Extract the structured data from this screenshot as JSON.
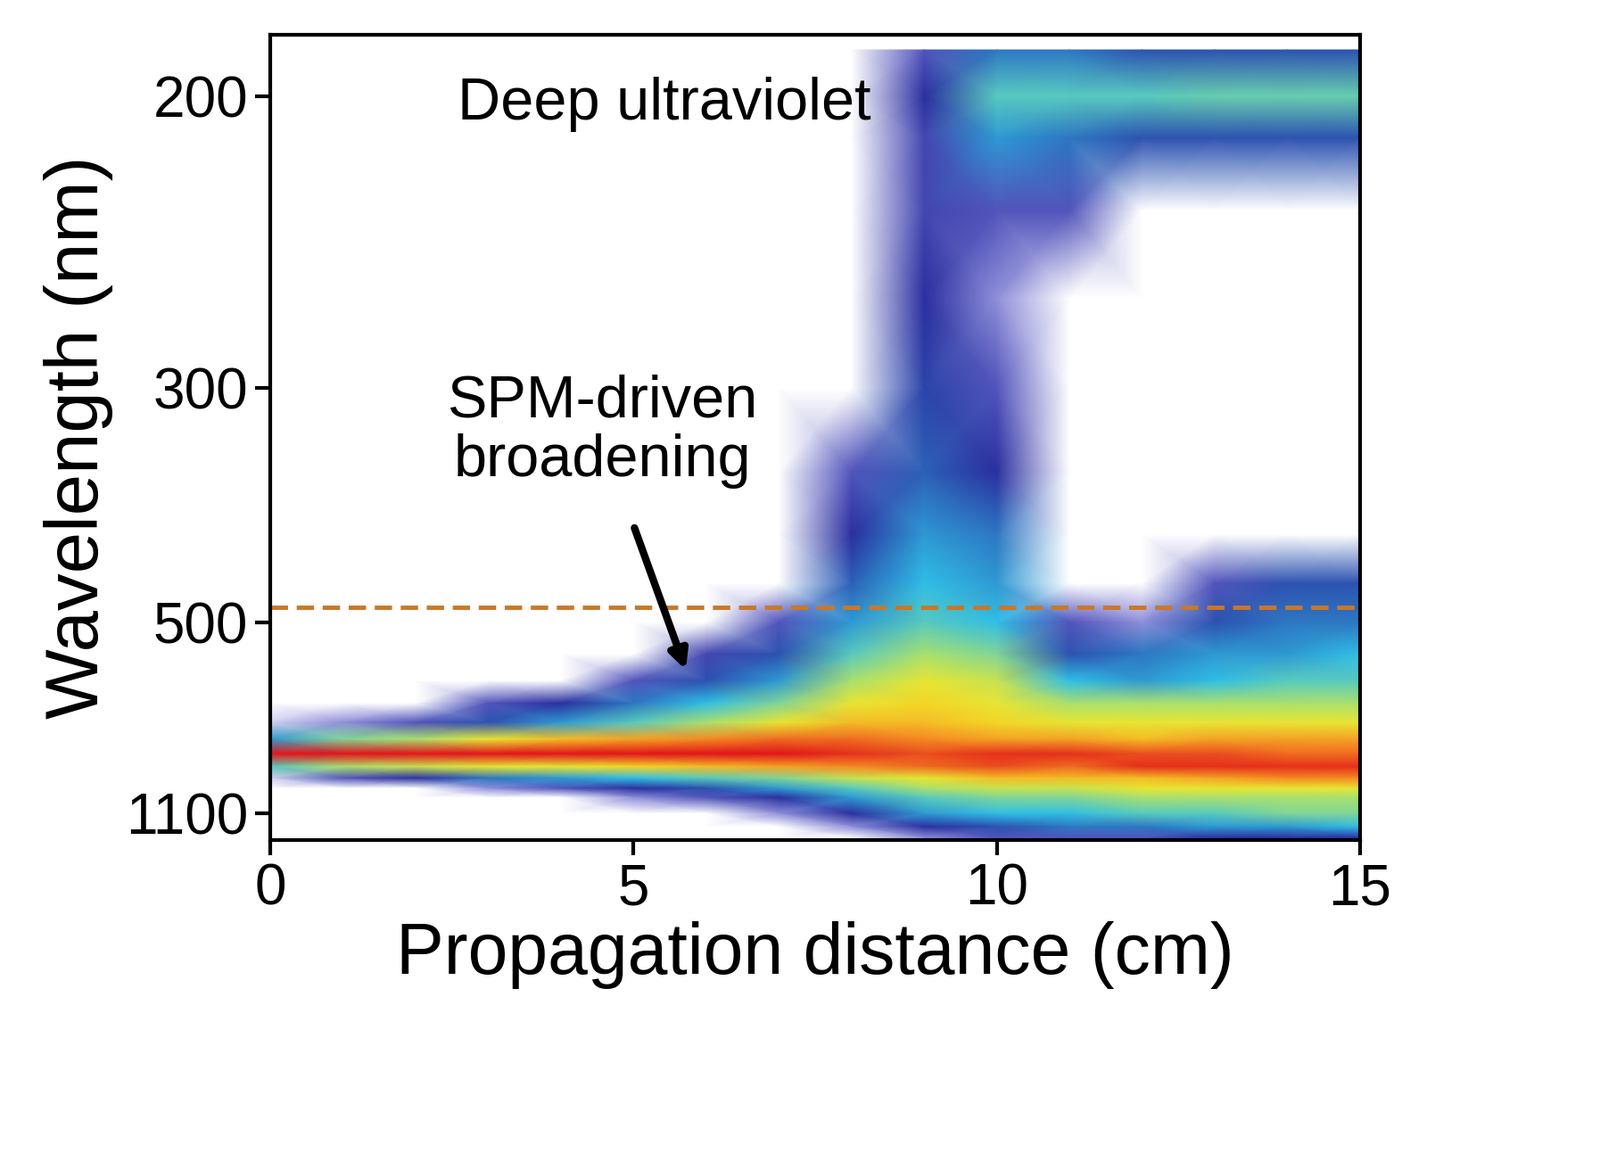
{
  "chart_data": {
    "type": "heatmap",
    "x_label": "Propagation distance (cm)",
    "y_label": "Wavelength (nm)",
    "x": [
      0,
      1,
      2,
      3,
      4,
      5,
      6,
      7,
      8,
      9,
      10,
      11,
      12,
      13,
      14,
      15
    ],
    "wavelengths": [
      190,
      200,
      210,
      230,
      260,
      300,
      350,
      400,
      450,
      500,
      550,
      600,
      650,
      700,
      750,
      800,
      850,
      900,
      950,
      1000,
      1100,
      1200,
      1300
    ],
    "cells": [
      [
        0,
        0,
        0,
        0,
        0,
        0,
        0,
        0,
        0,
        0,
        0,
        0,
        0,
        0.02,
        0.3,
        1,
        0.4,
        0.02,
        0,
        0,
        0,
        0,
        0
      ],
      [
        0,
        0,
        0,
        0,
        0,
        0,
        0,
        0,
        0,
        0,
        0,
        0,
        0,
        0.05,
        0.45,
        1,
        0.5,
        0.1,
        0,
        0,
        0,
        0,
        0
      ],
      [
        0,
        0,
        0,
        0,
        0,
        0,
        0,
        0,
        0,
        0,
        0,
        0,
        0,
        0.1,
        0.5,
        1,
        0.55,
        0.15,
        0,
        0,
        0,
        0,
        0
      ],
      [
        0,
        0,
        0,
        0,
        0,
        0,
        0,
        0,
        0,
        0,
        0,
        0,
        0.1,
        0.2,
        0.6,
        1,
        0.6,
        0.25,
        0.05,
        0,
        0,
        0,
        0
      ],
      [
        0,
        0,
        0,
        0,
        0,
        0,
        0,
        0,
        0,
        0,
        0,
        0,
        0.15,
        0.3,
        0.7,
        1,
        0.6,
        0.3,
        0.1,
        0,
        0,
        0,
        0
      ],
      [
        0,
        0,
        0,
        0,
        0,
        0,
        0,
        0,
        0,
        0,
        0,
        0.1,
        0.25,
        0.4,
        0.75,
        1,
        0.65,
        0.35,
        0.15,
        0.05,
        0,
        0,
        0
      ],
      [
        0,
        0,
        0,
        0,
        0,
        0,
        0,
        0,
        0,
        0,
        0.12,
        0.2,
        0.35,
        0.5,
        0.8,
        1,
        0.7,
        0.4,
        0.2,
        0.1,
        0,
        0,
        0
      ],
      [
        0,
        0,
        0,
        0,
        0,
        0,
        0,
        0,
        0,
        0.1,
        0.2,
        0.3,
        0.45,
        0.6,
        0.85,
        1,
        0.75,
        0.45,
        0.3,
        0.15,
        0.05,
        0,
        0
      ],
      [
        0,
        0,
        0,
        0,
        0,
        0,
        0.1,
        0.15,
        0.22,
        0.3,
        0.4,
        0.5,
        0.6,
        0.7,
        0.85,
        0.95,
        0.8,
        0.55,
        0.4,
        0.3,
        0.15,
        0.05,
        0
      ],
      [
        0.1,
        0.15,
        0.12,
        0.12,
        0.15,
        0.18,
        0.22,
        0.3,
        0.35,
        0.4,
        0.5,
        0.6,
        0.65,
        0.7,
        0.8,
        0.9,
        0.85,
        0.6,
        0.5,
        0.4,
        0.3,
        0.15,
        0.05
      ],
      [
        0.25,
        0.4,
        0.3,
        0.1,
        0.05,
        0.1,
        0.15,
        0.25,
        0.3,
        0.35,
        0.45,
        0.55,
        0.6,
        0.65,
        0.75,
        0.95,
        0.9,
        0.7,
        0.55,
        0.45,
        0.35,
        0.2,
        0.1
      ],
      [
        0.25,
        0.4,
        0.25,
        0.1,
        0,
        0,
        0,
        0,
        0,
        0.1,
        0.2,
        0.35,
        0.5,
        0.6,
        0.75,
        0.95,
        0.85,
        0.7,
        0.55,
        0.45,
        0.35,
        0.25,
        0.1
      ],
      [
        0.2,
        0.4,
        0.2,
        0,
        0,
        0,
        0,
        0,
        0,
        0.05,
        0.25,
        0.3,
        0.5,
        0.6,
        0.7,
        0.9,
        0.95,
        0.7,
        0.6,
        0.5,
        0.4,
        0.25,
        0.1
      ],
      [
        0.2,
        0.42,
        0.2,
        0,
        0,
        0,
        0,
        0,
        0.1,
        0.2,
        0.3,
        0.35,
        0.5,
        0.6,
        0.75,
        0.9,
        0.95,
        0.75,
        0.6,
        0.5,
        0.4,
        0.3,
        0.15
      ],
      [
        0.2,
        0.42,
        0.2,
        0,
        0,
        0,
        0,
        0,
        0.2,
        0.25,
        0.3,
        0.4,
        0.5,
        0.6,
        0.75,
        0.85,
        0.95,
        0.8,
        0.6,
        0.5,
        0.45,
        0.3,
        0.15
      ],
      [
        0.2,
        0.42,
        0.2,
        0,
        0,
        0,
        0,
        0,
        0.2,
        0.25,
        0.35,
        0.4,
        0.5,
        0.6,
        0.75,
        0.85,
        0.95,
        0.8,
        0.6,
        0.5,
        0.45,
        0.35,
        0.15
      ]
    ],
    "color_range": [
      0,
      1
    ],
    "xlim": [
      0,
      15
    ],
    "xticks": [
      0,
      5,
      10,
      15
    ],
    "ylim": [
      1320,
      187
    ],
    "yticks": [
      200,
      300,
      500,
      1100
    ],
    "hline": {
      "y": 480,
      "color": "#c8782a",
      "line_style": "dashed"
    },
    "annotations": [
      "Deep ultraviolet",
      "SPM-driven\nbroadening"
    ]
  }
}
